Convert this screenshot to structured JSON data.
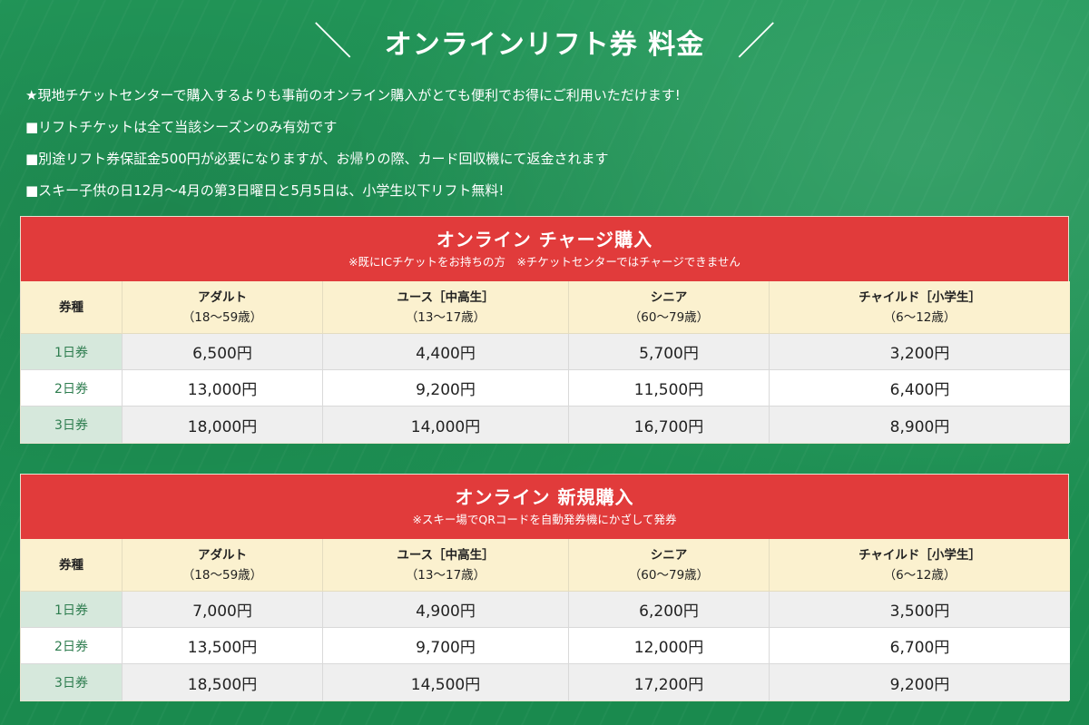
{
  "page": {
    "title": "オンラインリフト券 料金",
    "slash_left": "＼",
    "slash_right": "／"
  },
  "notes": [
    "★現地チケットセンターで購入するよりも事前のオンライン購入がとても便利でお得にご利用いただけます!",
    "■リフトチケットは全て当該シーズンのみ有効です",
    "■別途リフト券保証金500円が必要になりますが、お帰りの際、カード回収機にて返金されます",
    "■スキー子供の日12月〜4月の第3日曜日と5月5日は、小学生以下リフト無料!"
  ],
  "headers": {
    "ticket_type": "券種",
    "adult": "アダルト",
    "adult_age": "（18〜59歳）",
    "youth": "ユース［中高生］",
    "youth_age": "（13〜17歳）",
    "senior": "シニア",
    "senior_age": "（60〜79歳）",
    "child": "チャイルド［小学生］",
    "child_age": "（6〜12歳）"
  },
  "tables": [
    {
      "title": "オンライン チャージ購入",
      "subtitle": "※既にICチケットをお持ちの方　※チケットセンターではチャージできません",
      "rows": [
        {
          "label": "1日券",
          "adult": "6,500円",
          "youth": "4,400円",
          "senior": "5,700円",
          "child": "3,200円"
        },
        {
          "label": "2日券",
          "adult": "13,000円",
          "youth": "9,200円",
          "senior": "11,500円",
          "child": "6,400円"
        },
        {
          "label": "3日券",
          "adult": "18,000円",
          "youth": "14,000円",
          "senior": "16,700円",
          "child": "8,900円"
        }
      ]
    },
    {
      "title": "オンライン 新規購入",
      "subtitle": "※スキー場でQRコードを自動発券機にかざして発券",
      "rows": [
        {
          "label": "1日券",
          "adult": "7,000円",
          "youth": "4,900円",
          "senior": "6,200円",
          "child": "3,500円"
        },
        {
          "label": "2日券",
          "adult": "13,500円",
          "youth": "9,700円",
          "senior": "12,000円",
          "child": "6,700円"
        },
        {
          "label": "3日券",
          "adult": "18,500円",
          "youth": "14,500円",
          "senior": "17,200円",
          "child": "9,200円"
        }
      ]
    }
  ],
  "colors": {
    "background_green": "#1f9656",
    "header_red": "#e13b3b",
    "column_header_cream": "#fbf1cf",
    "row_label_green": "#d6e8dc",
    "row_label_text": "#2e7d4f"
  }
}
